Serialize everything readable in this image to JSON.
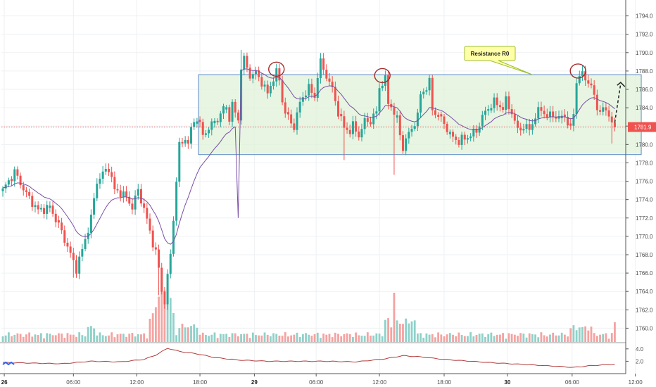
{
  "chart_data": {
    "type": "candlestick",
    "y_axis": {
      "ylim": [
        1758.5,
        1795.5
      ],
      "ticks": [
        "1794.0",
        "1792.0",
        "1790.0",
        "1788.0",
        "1786.0",
        "1784.0",
        "1782.0",
        "1780.0",
        "1778.0",
        "1776.0",
        "1774.0",
        "1772.0",
        "1770.0",
        "1768.0",
        "1766.0",
        "1764.0",
        "1762.0",
        "1760.0"
      ],
      "tick_values": [
        1794,
        1792,
        1790,
        1788,
        1786,
        1784,
        1782,
        1780,
        1778,
        1776,
        1774,
        1772,
        1770,
        1768,
        1766,
        1764,
        1762,
        1760
      ]
    },
    "x_axis": {
      "ticks": [
        {
          "label": "26",
          "t": 0.5
        },
        {
          "label": "06:00",
          "t": 24
        },
        {
          "label": "12:00",
          "t": 45.5
        },
        {
          "label": "18:00",
          "t": 67
        },
        {
          "label": "29",
          "t": 85.5
        },
        {
          "label": "06:00",
          "t": 106.5
        },
        {
          "label": "12:00",
          "t": 128
        },
        {
          "label": "18:00",
          "t": 150
        },
        {
          "label": "30",
          "t": 171.5
        },
        {
          "label": "06:00",
          "t": 193.5
        },
        {
          "label": "12:00",
          "t": 215
        }
      ]
    },
    "last_price": {
      "value": 1781.9,
      "label": "1781.9"
    },
    "indicator_axis": {
      "ticks": [
        "4.0",
        "2.0"
      ],
      "tick_values": [
        4.0,
        2.0
      ],
      "ylim": [
        0,
        5
      ]
    },
    "resistance_box": {
      "price_top": 1787.6,
      "price_bottom": 1778.9,
      "t_start": 66.5,
      "t_end": 217
    },
    "annotation": {
      "text": "Resistance R0",
      "anchor_t": 180,
      "anchor_price": 1787.6
    },
    "highlight_circles": [
      {
        "t": 93,
        "price": 1788.2
      },
      {
        "t": 129,
        "price": 1787.5
      },
      {
        "t": 195.5,
        "price": 1788.0
      }
    ],
    "projection_arrow": {
      "from_t": 208,
      "from_price": 1782.4,
      "to_t": 210,
      "to_price": 1786.6
    },
    "colors": {
      "up": "#26a69a",
      "down": "#ef5350",
      "volume_up": "#8fd1c9",
      "volume_down": "#f4a3a1",
      "vwap": "#7b4fa6",
      "indicator": "#b33a3a",
      "box_fill": "#dff2d8",
      "box_stroke": "#5b8ac9",
      "circle": "#a52a2a",
      "callout_fill": "#ffffa8",
      "callout_stroke": "#9fbf2f",
      "price_tag": "#ef5350"
    }
  }
}
